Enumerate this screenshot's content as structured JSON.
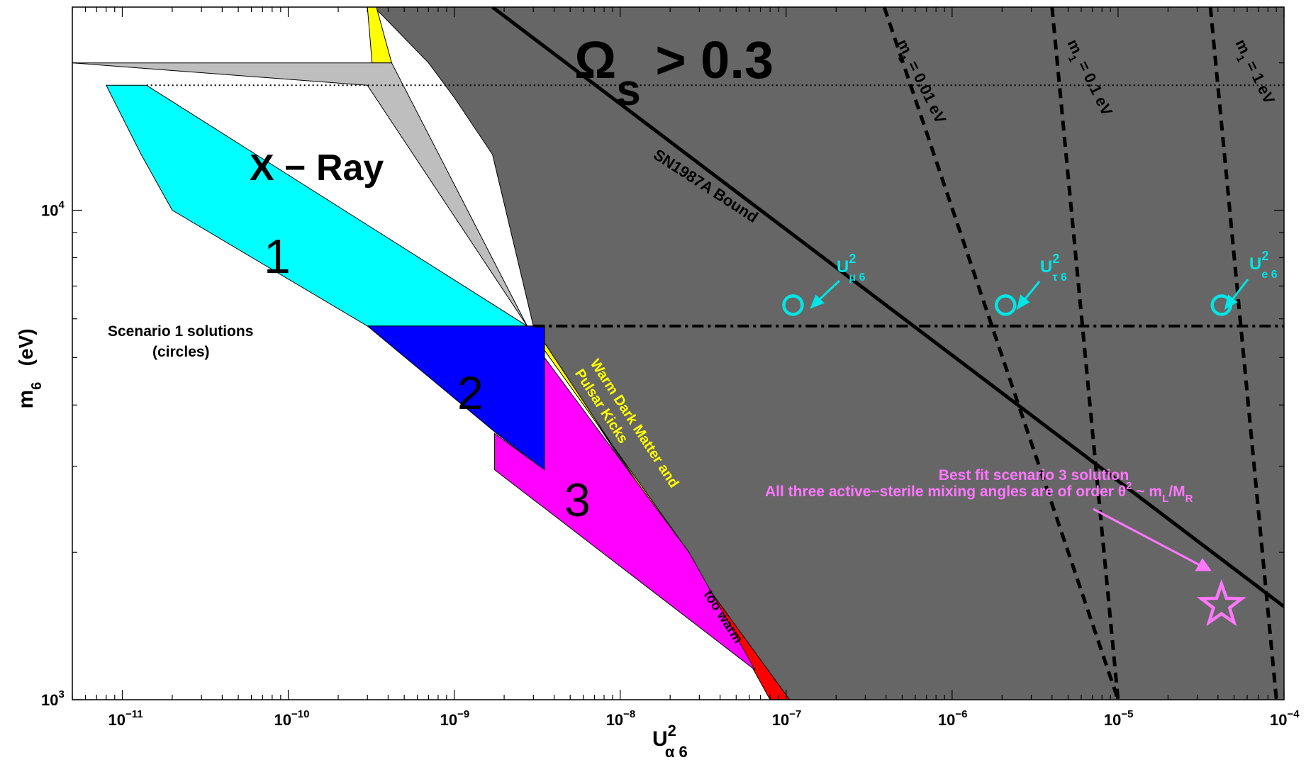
{
  "chart_data": {
    "type": "area",
    "xscale": "log",
    "yscale": "log",
    "xlim": [
      5e-12,
      0.0001
    ],
    "ylim": [
      1000,
      26000
    ],
    "xticks": [
      {
        "base": "10",
        "exp": "−11",
        "value": 1e-11
      },
      {
        "base": "10",
        "exp": "−10",
        "value": 1e-10
      },
      {
        "base": "10",
        "exp": "−9",
        "value": 1e-09
      },
      {
        "base": "10",
        "exp": "−8",
        "value": 1e-08
      },
      {
        "base": "10",
        "exp": "−7",
        "value": 1e-07
      },
      {
        "base": "10",
        "exp": "−6",
        "value": 1e-06
      },
      {
        "base": "10",
        "exp": "−5",
        "value": 1e-05
      },
      {
        "base": "10",
        "exp": "−4",
        "value": 0.0001
      }
    ],
    "yticks": [
      {
        "base": "10",
        "exp": "3",
        "value": 1000
      },
      {
        "base": "10",
        "exp": "4",
        "value": 10000
      }
    ],
    "xlabel": {
      "main": "U",
      "sup": "2",
      "sub": "α 6"
    },
    "ylabel": {
      "main": "m",
      "sub": "6",
      "unit": "(eV)"
    },
    "regions": [
      {
        "name": "omega-region",
        "color": "#666666",
        "points": [
          [
            3.3e-10,
            26000
          ],
          [
            0.0001,
            26000
          ],
          [
            0.0001,
            1000
          ],
          [
            1.05e-07,
            1000
          ],
          [
            2.7e-08,
            1850
          ],
          [
            3e-09,
            5800
          ],
          [
            1.7e-09,
            13000
          ],
          [
            1e-09,
            17000
          ],
          [
            7e-10,
            20000
          ]
        ]
      },
      {
        "name": "yellow-band",
        "color": "#ffff00",
        "points": [
          [
            3e-10,
            26000
          ],
          [
            3.4e-10,
            26000
          ],
          [
            4.2e-10,
            20000
          ],
          [
            3.2e-10,
            20000
          ]
        ]
      },
      {
        "name": "yellow-band",
        "color": "#ffff00",
        "points": [
          [
            3e-09,
            5800
          ],
          [
            2.75e-09,
            5800
          ],
          [
            2.6e-08,
            2000
          ],
          [
            2.8e-08,
            1850
          ]
        ]
      },
      {
        "name": "red-band",
        "color": "#ff0000",
        "points": [
          [
            2.6e-08,
            2000
          ],
          [
            2.8e-08,
            1850
          ],
          [
            1.05e-07,
            1000
          ],
          [
            8e-08,
            1000
          ]
        ]
      },
      {
        "name": "xray-region",
        "color": "#bebebe",
        "points": [
          [
            5e-12,
            20000
          ],
          [
            4.2e-10,
            20000
          ],
          [
            2.75e-09,
            5800
          ],
          [
            3e-10,
            18000
          ]
        ]
      },
      {
        "name": "cyan-region",
        "color": "#00ffff",
        "points": [
          [
            8e-12,
            18000
          ],
          [
            1.4e-11,
            18000
          ],
          [
            2.75e-09,
            5800
          ],
          [
            3e-10,
            5800
          ],
          [
            2e-11,
            10000
          ],
          [
            1.3e-11,
            13000
          ]
        ]
      },
      {
        "name": "blue-region",
        "color": "#0000ff",
        "points": [
          [
            3e-10,
            5800
          ],
          [
            3.5e-09,
            5800
          ],
          [
            3.5e-09,
            2950
          ],
          [
            1.8e-09,
            3500
          ]
        ]
      },
      {
        "name": "magenta-region",
        "color": "#ff00ff",
        "points": [
          [
            3.5e-09,
            5000
          ],
          [
            3.5e-09,
            2950
          ],
          [
            1.75e-09,
            3500
          ],
          [
            1.75e-09,
            2950
          ],
          [
            6.5e-08,
            1150
          ],
          [
            2.6e-08,
            2000
          ]
        ]
      }
    ],
    "lines": [
      {
        "name": "sn1987a-line",
        "style": "solid",
        "points": [
          [
            1.7e-09,
            26000
          ],
          [
            0.0001,
            1550
          ]
        ]
      },
      {
        "name": "m1-0.01ev-line",
        "style": "dashed",
        "points": [
          [
            3.9e-07,
            26000
          ],
          [
            1e-05,
            1000
          ]
        ]
      },
      {
        "name": "m1-0.1ev-line",
        "style": "dashed",
        "points": [
          [
            4e-06,
            26000
          ],
          [
            1e-05,
            1000
          ]
        ]
      },
      {
        "name": "m1-1ev-line",
        "style": "dashed",
        "points": [
          [
            3.6e-05,
            26000
          ],
          [
            9e-05,
            1000
          ]
        ]
      },
      {
        "name": "dashdot-line",
        "style": "dashdot",
        "points": [
          [
            3e-09,
            5800
          ],
          [
            0.0001,
            5800
          ]
        ]
      },
      {
        "name": "dotted-line",
        "style": "dotted",
        "points": [
          [
            1.4e-11,
            18000
          ],
          [
            0.0001,
            18000
          ]
        ]
      }
    ],
    "points": [
      {
        "name": "scenario-1-circle-mu",
        "x": 1.1e-07,
        "y": 6400,
        "marker": "circle",
        "color": "#00e5e5"
      },
      {
        "name": "scenario-1-circle-tau",
        "x": 2.1e-06,
        "y": 6400,
        "marker": "circle",
        "color": "#00e5e5"
      },
      {
        "name": "scenario-1-circle-e",
        "x": 4.2e-05,
        "y": 6400,
        "marker": "circle",
        "color": "#00e5e5"
      },
      {
        "name": "best-fit-star",
        "x": 4.2e-05,
        "y": 1560,
        "marker": "star",
        "color": "#ff77ff"
      }
    ],
    "annotations": {
      "omega": {
        "main": "Ω",
        "sub": "s",
        "rest": " > 0.3"
      },
      "xray": "X − Ray",
      "region_1": "1",
      "region_2": "2",
      "region_3": "3",
      "sn1987a": "SN1987A Bound",
      "m1_001": {
        "main": "m",
        "sub": "1",
        "rest": " = 0.01 eV"
      },
      "m1_01": {
        "main": "m",
        "sub": "1",
        "rest": " = 0.1 eV"
      },
      "m1_1": {
        "main": "m",
        "sub": "1",
        "rest": " = 1 eV"
      },
      "wdm_line1": "Warm Dark Matter and",
      "wdm_line2": "Pulsar Kicks",
      "too_warm": "too warm",
      "scenario1_line1": "Scenario 1 solutions",
      "scenario1_line2": "(circles)",
      "u_mu6": {
        "main": "U",
        "sup": "2",
        "sub": "μ 6"
      },
      "u_tau6": {
        "main": "U",
        "sup": "2",
        "sub": "τ 6"
      },
      "u_e6": {
        "main": "U",
        "sup": "2",
        "sub": "e 6"
      },
      "bestfit_line1": "Best fit scenario 3 solution",
      "bestfit_line2": {
        "pre": "All three active−sterile mixing angles are of order θ",
        "sup": "2",
        "mid": " ~ m",
        "sub1": "L",
        "slash": "/M",
        "sub2": "R"
      }
    }
  },
  "colors": {
    "omega": "#666666",
    "xray": "#bebebe",
    "cyan": "#00ffff",
    "blue": "#0000ff",
    "magenta": "#ff00ff",
    "yellow": "#ffff00",
    "red": "#ff0000",
    "marker_cyan": "#00e5e5",
    "marker_pink": "#ff77ff"
  }
}
